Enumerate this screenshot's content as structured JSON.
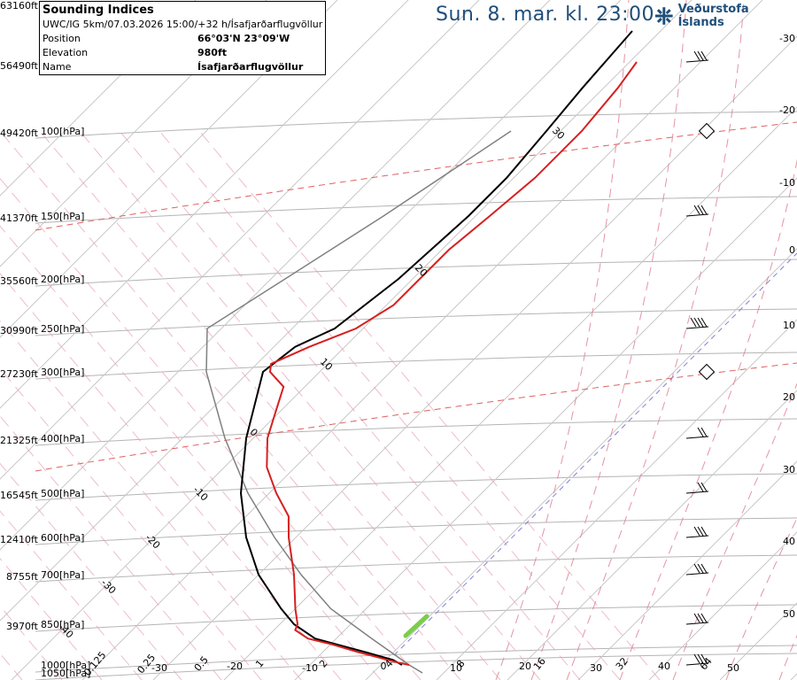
{
  "header": {
    "title": "Sun. 8. mar. kl. 23:00",
    "logo_text": "Veðurstofa Íslands"
  },
  "info_box": {
    "title": "Sounding Indices",
    "run_line": "UWC/IG 5km/07.03.2026 15:00/+32 h/Ísafjarðarflugvöllur",
    "rows": [
      {
        "key": "Position",
        "value": "66°03'N 23°09'W"
      },
      {
        "key": "Elevation",
        "value": "980ft"
      },
      {
        "key": "Name",
        "value": "Ísafjarðarflugvöllur"
      }
    ]
  },
  "colors": {
    "temperature": "#d62020",
    "dewpoint": "#000000",
    "parcel": "#808080",
    "isobar": "#b4b4b4",
    "isotherm": "#c8c8c8",
    "dry_adiabat": "#e6a0b4",
    "moist_adiabat": "#dc7a8c",
    "tropopause": "#e06060",
    "mixing_ratio": "#8080e0",
    "title": "#1f4e79",
    "wind_highlight": "#7ccd4a"
  },
  "chart_data": {
    "type": "skew-t",
    "pressure_labels": [
      {
        "p": 100,
        "alt": "49420ft",
        "label": "100[hPa]"
      },
      {
        "p": 150,
        "alt": "41370ft",
        "label": "150[hPa]"
      },
      {
        "p": 200,
        "alt": "35560ft",
        "label": "200[hPa]"
      },
      {
        "p": 250,
        "alt": "30990ft",
        "label": "250[hPa]"
      },
      {
        "p": 300,
        "alt": "27230ft",
        "label": "300[hPa]"
      },
      {
        "p": 400,
        "alt": "21325ft",
        "label": "400[hPa]"
      },
      {
        "p": 500,
        "alt": "16545ft",
        "label": "500[hPa]"
      },
      {
        "p": 600,
        "alt": "12410ft",
        "label": "600[hPa]"
      },
      {
        "p": 700,
        "alt": "8755ft",
        "label": "700[hPa]"
      },
      {
        "p": 850,
        "alt": "3970ft",
        "label": "850[hPa]"
      },
      {
        "p": 1000,
        "alt": "",
        "label": "1000[hPa]"
      },
      {
        "p": 1050,
        "alt": "",
        "label": "1050[hPa]"
      }
    ],
    "top_altitudes": [
      "63160ft",
      "56490ft"
    ],
    "right_temp_ticks": [
      "-30",
      "-20",
      "-10",
      "0",
      "10",
      "20",
      "30",
      "40",
      "50"
    ],
    "bottom_temp_ticks": [
      "-30",
      "-20",
      "-10",
      "0",
      "10",
      "20",
      "30",
      "40",
      "50"
    ],
    "mixing_ratio_ticks": [
      "0.125",
      "0.25",
      "0.5",
      "1",
      "2",
      "4",
      "8",
      "16",
      "32",
      "64"
    ],
    "skewed_isotherm_labels": [
      "30",
      "20",
      "10",
      "0",
      "-10",
      "-20",
      "-30",
      "-40"
    ],
    "temperature": [
      {
        "p": 1000,
        "t": 4
      },
      {
        "p": 990,
        "t": 2
      },
      {
        "p": 950,
        "t": -5
      },
      {
        "p": 920,
        "t": -10
      },
      {
        "p": 900,
        "t": -14
      },
      {
        "p": 870,
        "t": -17
      },
      {
        "p": 850,
        "t": -17.5
      },
      {
        "p": 800,
        "t": -20
      },
      {
        "p": 700,
        "t": -25
      },
      {
        "p": 600,
        "t": -31
      },
      {
        "p": 550,
        "t": -34
      },
      {
        "p": 500,
        "t": -39
      },
      {
        "p": 450,
        "t": -44
      },
      {
        "p": 400,
        "t": -48
      },
      {
        "p": 350,
        "t": -51
      },
      {
        "p": 320,
        "t": -53
      },
      {
        "p": 300,
        "t": -57
      },
      {
        "p": 290,
        "t": -58
      },
      {
        "p": 270,
        "t": -55
      },
      {
        "p": 250,
        "t": -51
      },
      {
        "p": 225,
        "t": -49
      },
      {
        "p": 200,
        "t": -49
      },
      {
        "p": 175,
        "t": -49
      },
      {
        "p": 150,
        "t": -48
      },
      {
        "p": 125,
        "t": -47
      },
      {
        "p": 100,
        "t": -47
      },
      {
        "p": 80,
        "t": -48
      },
      {
        "p": 70,
        "t": -49
      }
    ],
    "dewpoint": [
      {
        "p": 1000,
        "td": 3
      },
      {
        "p": 980,
        "td": 1
      },
      {
        "p": 950,
        "td": -4
      },
      {
        "p": 900,
        "td": -13
      },
      {
        "p": 850,
        "td": -18
      },
      {
        "p": 800,
        "td": -22
      },
      {
        "p": 700,
        "td": -30
      },
      {
        "p": 600,
        "td": -37
      },
      {
        "p": 500,
        "td": -44
      },
      {
        "p": 400,
        "td": -51
      },
      {
        "p": 300,
        "td": -58
      },
      {
        "p": 270,
        "td": -57
      },
      {
        "p": 250,
        "td": -54
      },
      {
        "p": 200,
        "td": -52
      },
      {
        "p": 150,
        "td": -51
      },
      {
        "p": 125,
        "td": -51
      },
      {
        "p": 100,
        "td": -52
      },
      {
        "p": 80,
        "td": -53
      },
      {
        "p": 60,
        "td": -54
      }
    ],
    "parcel": [
      {
        "p": 1050,
        "t": 7
      },
      {
        "p": 1000,
        "t": 4
      },
      {
        "p": 900,
        "t": -5
      },
      {
        "p": 800,
        "t": -15
      },
      {
        "p": 700,
        "t": -24
      },
      {
        "p": 600,
        "t": -33
      },
      {
        "p": 500,
        "t": -43
      },
      {
        "p": 400,
        "t": -54
      },
      {
        "p": 300,
        "t": -66
      },
      {
        "p": 250,
        "t": -72
      },
      {
        "p": 200,
        "t": -68
      },
      {
        "p": 150,
        "t": -63
      },
      {
        "p": 100,
        "t": -57
      }
    ],
    "wind_barbs": [
      {
        "p": 70,
        "type": "barb",
        "speed": 30
      },
      {
        "p": 100,
        "type": "flag",
        "speed": 0
      },
      {
        "p": 150,
        "type": "barb",
        "speed": 30
      },
      {
        "p": 250,
        "type": "barb",
        "speed": 35
      },
      {
        "p": 300,
        "type": "flag",
        "speed": 0
      },
      {
        "p": 400,
        "type": "barb",
        "speed": 20
      },
      {
        "p": 500,
        "type": "barb",
        "speed": 20
      },
      {
        "p": 600,
        "type": "barb",
        "speed": 25
      },
      {
        "p": 700,
        "type": "barb",
        "speed": 25
      },
      {
        "p": 850,
        "type": "barb",
        "speed": 25
      },
      {
        "p": 1000,
        "type": "barb",
        "speed": 30
      }
    ],
    "tropopause_levels": [
      100,
      300
    ],
    "title": "",
    "xlabel": "",
    "ylabel": "",
    "ylim": [
      1050,
      65
    ],
    "grid": true
  }
}
